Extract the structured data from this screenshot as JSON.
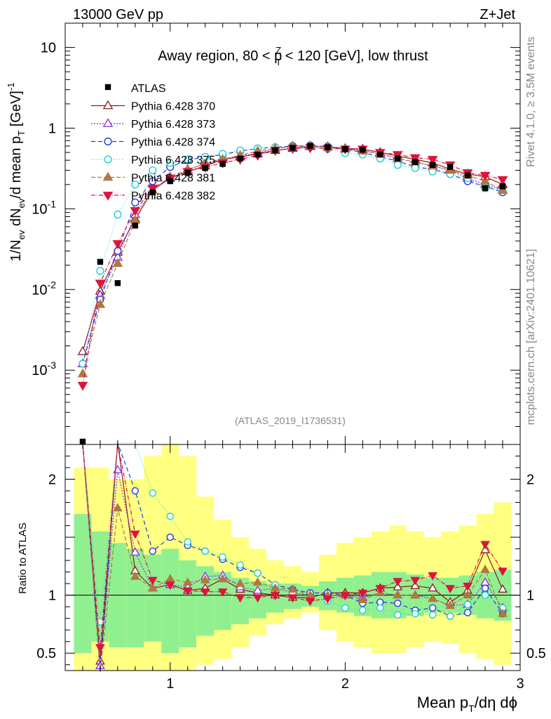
{
  "header": {
    "left": "13000 GeV pp",
    "right": "Z+Jet"
  },
  "side": {
    "rivet": "Rivet 4.1.0, ≥ 3.5M events",
    "mcplots": "mcplots.cern.ch [arXiv:2401.10621]"
  },
  "chart_data": {
    "type": "line",
    "title": "Away region, 80 < p_T^Z < 120 [GeV], low thrust",
    "title_parts": {
      "a": "Away region, 80 < p",
      "sub": "T",
      "sup": "Z",
      "b": " < 120 [GeV], low thrust"
    },
    "analysis_id": "(ATLAS_2019_I1736531)",
    "xlabel": "Mean p_T/dη dϕ",
    "xlabel_parts": {
      "a": "Mean p",
      "sub": "T",
      "b": "/dη dϕ"
    },
    "ylabel": "1/N_ev dN_ev/d mean p_T [GeV]^-1",
    "ylabel_parts": {
      "a": "1/N",
      "sub1": "ev",
      "b": " dN",
      "sub2": "ev",
      "c": "/d mean p",
      "sub3": "T",
      "d": " [GeV]",
      "sup": "-1"
    },
    "ratio_ylabel": "Ratio to ATLAS",
    "xlim": [
      0.4,
      3.0
    ],
    "ylim": [
      0.00012,
      20
    ],
    "yscale": "log",
    "ratio_ylim": [
      0.35,
      2.3
    ],
    "x_ticks": [
      1,
      2,
      3
    ],
    "y_ticks": [
      {
        "v": 0.001,
        "base": "10",
        "exp": "-3"
      },
      {
        "v": 0.01,
        "base": "10",
        "exp": "-2"
      },
      {
        "v": 0.1,
        "base": "10",
        "exp": "-1"
      },
      {
        "v": 1,
        "base": "1",
        "exp": ""
      },
      {
        "v": 10,
        "base": "10",
        "exp": ""
      }
    ],
    "ratio_ticks": [
      0.5,
      1,
      2
    ],
    "x": [
      0.5,
      0.6,
      0.7,
      0.8,
      0.9,
      1.0,
      1.1,
      1.2,
      1.3,
      1.4,
      1.5,
      1.6,
      1.7,
      1.8,
      1.9,
      2.0,
      2.1,
      2.2,
      2.3,
      2.4,
      2.5,
      2.6,
      2.7,
      2.8,
      2.9
    ],
    "data": {
      "name": "ATLAS",
      "values": [
        0.00013,
        0.022,
        0.012,
        0.062,
        0.16,
        0.22,
        0.28,
        0.32,
        0.36,
        0.42,
        0.47,
        0.53,
        0.57,
        0.6,
        0.58,
        0.55,
        0.54,
        0.47,
        0.42,
        0.38,
        0.35,
        0.33,
        0.26,
        0.18,
        0.19
      ],
      "band_inner": [
        [
          0.5,
          1.7
        ],
        [
          0.6,
          1.55
        ],
        [
          0.55,
          1.45
        ],
        [
          0.55,
          1.4
        ],
        [
          0.6,
          1.35
        ],
        [
          0.5,
          1.4
        ],
        [
          0.55,
          1.3
        ],
        [
          0.65,
          1.25
        ],
        [
          0.7,
          1.2
        ],
        [
          0.75,
          1.15
        ],
        [
          0.8,
          1.12
        ],
        [
          0.85,
          1.1
        ],
        [
          0.88,
          1.1
        ],
        [
          0.9,
          1.08
        ],
        [
          0.87,
          1.12
        ],
        [
          0.85,
          1.15
        ],
        [
          0.82,
          1.17
        ],
        [
          0.8,
          1.2
        ],
        [
          0.8,
          1.2
        ],
        [
          0.82,
          1.18
        ],
        [
          0.85,
          1.15
        ],
        [
          0.85,
          1.15
        ],
        [
          0.83,
          1.17
        ],
        [
          0.8,
          1.2
        ],
        [
          0.78,
          1.22
        ]
      ],
      "band_outer": [
        [
          0.35,
          2.1
        ],
        [
          0.35,
          2.1
        ],
        [
          0.35,
          2.0
        ],
        [
          0.35,
          2.0
        ],
        [
          0.35,
          2.2
        ],
        [
          0.35,
          2.3
        ],
        [
          0.35,
          2.2
        ],
        [
          0.4,
          1.85
        ],
        [
          0.45,
          1.65
        ],
        [
          0.55,
          1.5
        ],
        [
          0.65,
          1.4
        ],
        [
          0.75,
          1.3
        ],
        [
          0.8,
          1.25
        ],
        [
          0.85,
          1.2
        ],
        [
          0.7,
          1.35
        ],
        [
          0.6,
          1.45
        ],
        [
          0.55,
          1.5
        ],
        [
          0.5,
          1.55
        ],
        [
          0.5,
          1.6
        ],
        [
          0.55,
          1.55
        ],
        [
          0.6,
          1.5
        ],
        [
          0.58,
          1.55
        ],
        [
          0.5,
          1.6
        ],
        [
          0.45,
          1.7
        ],
        [
          0.4,
          1.8
        ]
      ]
    },
    "series": [
      {
        "name": "Pythia 6.428 370",
        "color": "#8b1a1a",
        "marker": "tri-up-open",
        "dash": "",
        "values": [
          0.0017,
          0.0095,
          0.029,
          0.075,
          0.17,
          0.24,
          0.29,
          0.34,
          0.41,
          0.44,
          0.48,
          0.53,
          0.56,
          0.59,
          0.59,
          0.56,
          0.55,
          0.5,
          0.45,
          0.41,
          0.37,
          0.31,
          0.27,
          0.25,
          0.2
        ],
        "ratio": [
          13,
          0.43,
          2.4,
          1.21,
          1.06,
          1.09,
          1.04,
          1.06,
          1.14,
          1.05,
          1.02,
          1.0,
          0.98,
          0.98,
          1.02,
          1.02,
          1.02,
          1.06,
          1.07,
          1.08,
          1.06,
          0.94,
          1.04,
          1.39,
          1.05
        ]
      },
      {
        "name": "Pythia 6.428 373",
        "color": "#8a2be2",
        "marker": "tri-up-open",
        "dash": "2,2",
        "values": [
          0.0012,
          0.0085,
          0.025,
          0.085,
          0.17,
          0.24,
          0.3,
          0.37,
          0.42,
          0.45,
          0.49,
          0.56,
          0.58,
          0.6,
          0.58,
          0.55,
          0.53,
          0.48,
          0.42,
          0.38,
          0.34,
          0.3,
          0.24,
          0.2,
          0.17
        ],
        "ratio": [
          9.2,
          0.39,
          2.08,
          1.37,
          1.06,
          1.09,
          1.07,
          1.16,
          1.17,
          1.07,
          1.04,
          1.06,
          1.02,
          1.0,
          1.0,
          1.0,
          0.98,
          1.02,
          1.0,
          1.0,
          0.97,
          0.91,
          0.92,
          1.11,
          0.89
        ]
      },
      {
        "name": "Pythia 6.428 374",
        "color": "#1e3cdc",
        "marker": "circle-open",
        "dash": "6,4",
        "values": [
          0.0012,
          0.0075,
          0.03,
          0.12,
          0.22,
          0.33,
          0.4,
          0.44,
          0.47,
          0.52,
          0.56,
          0.58,
          0.6,
          0.61,
          0.59,
          0.55,
          0.5,
          0.44,
          0.39,
          0.33,
          0.31,
          0.27,
          0.22,
          0.19,
          0.16
        ],
        "ratio": [
          9.2,
          0.34,
          2.5,
          1.9,
          1.38,
          1.5,
          1.43,
          1.38,
          1.31,
          1.24,
          1.19,
          1.09,
          1.05,
          1.02,
          1.02,
          1.0,
          0.93,
          0.94,
          0.93,
          0.87,
          0.89,
          0.82,
          0.85,
          1.06,
          0.84
        ]
      },
      {
        "name": "Pythia 6.428 375",
        "color": "#20d0d0",
        "marker": "circle-open",
        "dash": "1,3",
        "values": [
          0.0012,
          0.017,
          0.085,
          0.2,
          0.3,
          0.37,
          0.41,
          0.44,
          0.48,
          0.53,
          0.56,
          0.58,
          0.58,
          0.58,
          0.55,
          0.49,
          0.47,
          0.42,
          0.35,
          0.32,
          0.29,
          0.27,
          0.24,
          0.18,
          0.17
        ],
        "ratio": [
          9.2,
          0.77,
          7.1,
          3.2,
          1.88,
          1.68,
          1.46,
          1.38,
          1.33,
          1.26,
          1.19,
          1.09,
          1.02,
          0.97,
          0.95,
          0.89,
          0.87,
          0.89,
          0.83,
          0.84,
          0.83,
          0.82,
          0.92,
          1.0,
          0.89
        ]
      },
      {
        "name": "Pythia 6.428 381",
        "color": "#b07840",
        "marker": "tri-up-filled",
        "dash": "6,3",
        "values": [
          0.0009,
          0.0065,
          0.021,
          0.072,
          0.17,
          0.25,
          0.31,
          0.36,
          0.41,
          0.46,
          0.52,
          0.56,
          0.6,
          0.6,
          0.58,
          0.55,
          0.52,
          0.48,
          0.42,
          0.38,
          0.34,
          0.3,
          0.26,
          0.22,
          0.17
        ],
        "ratio": [
          6.9,
          0.3,
          1.75,
          1.16,
          1.06,
          1.14,
          1.11,
          1.13,
          1.14,
          1.1,
          1.11,
          1.06,
          1.05,
          1.0,
          1.0,
          1.0,
          0.96,
          1.02,
          1.0,
          1.0,
          0.97,
          0.91,
          1.0,
          1.22,
          0.84
        ]
      },
      {
        "name": "Pythia 6.428 382",
        "color": "#dc143c",
        "marker": "tri-down-filled",
        "dash": "6,2,1,2",
        "values": [
          0.00065,
          0.012,
          0.037,
          0.095,
          0.18,
          0.24,
          0.29,
          0.33,
          0.37,
          0.41,
          0.46,
          0.53,
          0.56,
          0.57,
          0.56,
          0.55,
          0.55,
          0.5,
          0.47,
          0.43,
          0.41,
          0.35,
          0.28,
          0.26,
          0.23
        ],
        "ratio": [
          5.0,
          0.55,
          3.1,
          1.53,
          1.13,
          1.09,
          1.04,
          1.03,
          1.03,
          0.98,
          0.98,
          1.0,
          0.98,
          0.95,
          0.97,
          1.0,
          1.02,
          1.06,
          1.12,
          1.13,
          1.17,
          1.06,
          1.08,
          1.44,
          1.21
        ]
      }
    ]
  }
}
